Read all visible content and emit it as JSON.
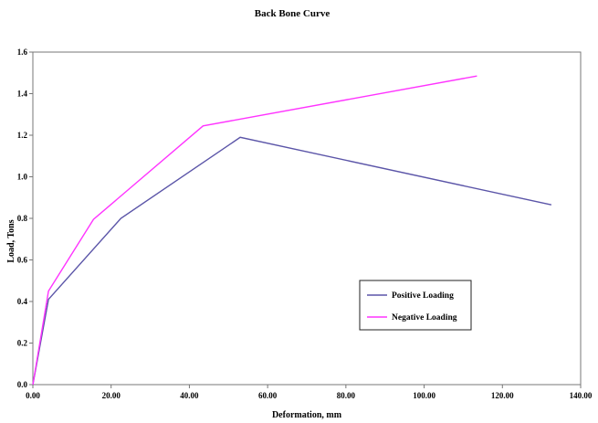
{
  "chart_data": {
    "type": "line",
    "title": "Back Bone Curve",
    "xlabel": "Deformation, mm",
    "ylabel": "Load, Tons",
    "xlim": [
      0,
      140
    ],
    "ylim": [
      0,
      1.6
    ],
    "x_ticks": [
      "0.00",
      "20.00",
      "40.00",
      "60.00",
      "80.00",
      "100.00",
      "120.00",
      "140.00"
    ],
    "y_ticks": [
      "0.0",
      "0.2",
      "0.4",
      "0.6",
      "0.8",
      "1.0",
      "1.2",
      "1.4",
      "1.6"
    ],
    "grid": false,
    "legend_position": "lower-right",
    "series": [
      {
        "name": "Positive Loading",
        "color": "#5b55a8",
        "x": [
          0,
          4,
          22.5,
          53,
          132.5
        ],
        "y": [
          0,
          0.41,
          0.8,
          1.19,
          0.865
        ]
      },
      {
        "name": "Negative Loading",
        "color": "#ff33ff",
        "x": [
          0,
          4,
          15.5,
          43.5,
          113.5
        ],
        "y": [
          0,
          0.45,
          0.795,
          1.245,
          1.485
        ]
      }
    ]
  }
}
